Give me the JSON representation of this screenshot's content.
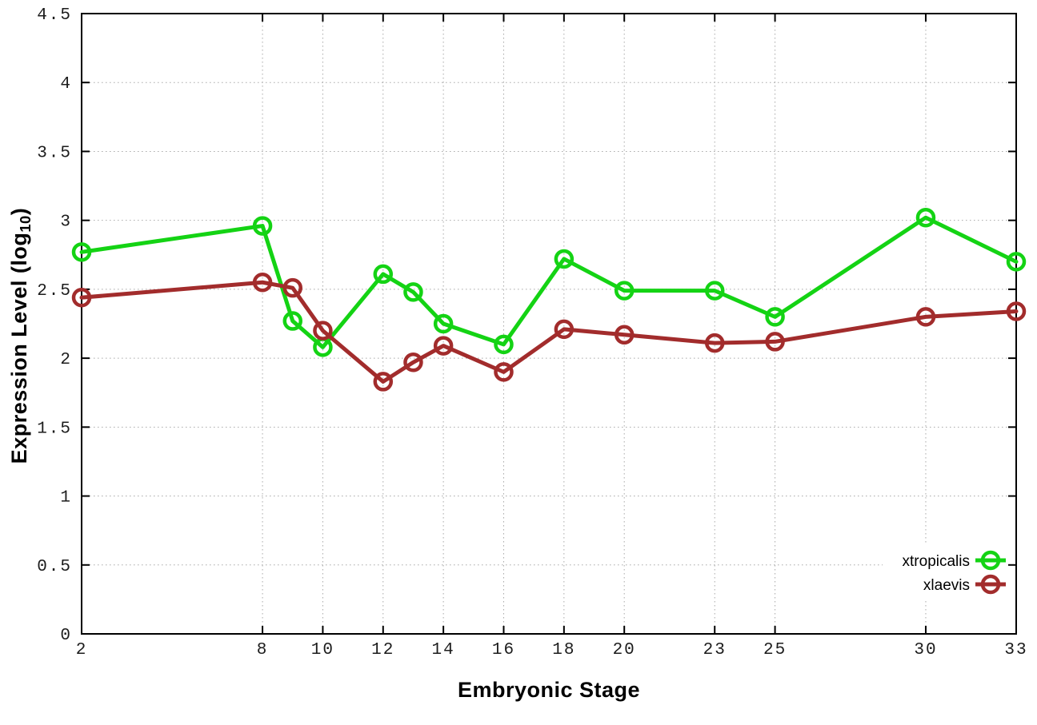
{
  "chart_data": {
    "type": "line",
    "title": "",
    "xlabel": "Embryonic Stage",
    "ylabel": "Expression Level (log10)",
    "ylabel_main": "Expression Level (log",
    "ylabel_sub": "10",
    "ylabel_close": ")",
    "x": [
      2,
      8,
      9,
      10,
      12,
      13,
      14,
      16,
      18,
      20,
      23,
      25,
      30,
      33
    ],
    "x_tick_labels": [
      "2",
      "8",
      "10",
      "12",
      "14",
      "16",
      "18",
      "20",
      "23",
      "25",
      "30",
      "33"
    ],
    "x_tick_values": [
      2,
      8,
      10,
      12,
      14,
      16,
      18,
      20,
      23,
      25,
      30,
      33
    ],
    "y_tick_labels": [
      "0",
      "0.5",
      "1",
      "1.5",
      "2",
      "2.5",
      "3",
      "3.5",
      "4",
      "4.5"
    ],
    "y_tick_values": [
      0,
      0.5,
      1,
      1.5,
      2,
      2.5,
      3,
      3.5,
      4,
      4.5
    ],
    "xlim": [
      2,
      33
    ],
    "ylim": [
      0,
      4.5
    ],
    "grid": true,
    "grid_style": "dotted",
    "marker": "open-circle",
    "legend_position": "inside-bottom-right",
    "series": [
      {
        "name": "xtropicalis",
        "color": "#14d314",
        "values": [
          2.77,
          2.96,
          2.27,
          2.08,
          2.61,
          2.48,
          2.25,
          2.1,
          2.72,
          2.49,
          2.49,
          2.3,
          3.02,
          2.7
        ]
      },
      {
        "name": "xlaevis",
        "color": "#a22c2c",
        "values": [
          2.44,
          2.55,
          2.51,
          2.2,
          1.83,
          1.97,
          2.09,
          1.9,
          2.21,
          2.17,
          2.11,
          2.12,
          2.3,
          2.34
        ]
      }
    ],
    "colors": {
      "background": "#ffffff",
      "border": "#000000",
      "grid": "#a8a8a8",
      "text": "#1c1c1c"
    }
  }
}
